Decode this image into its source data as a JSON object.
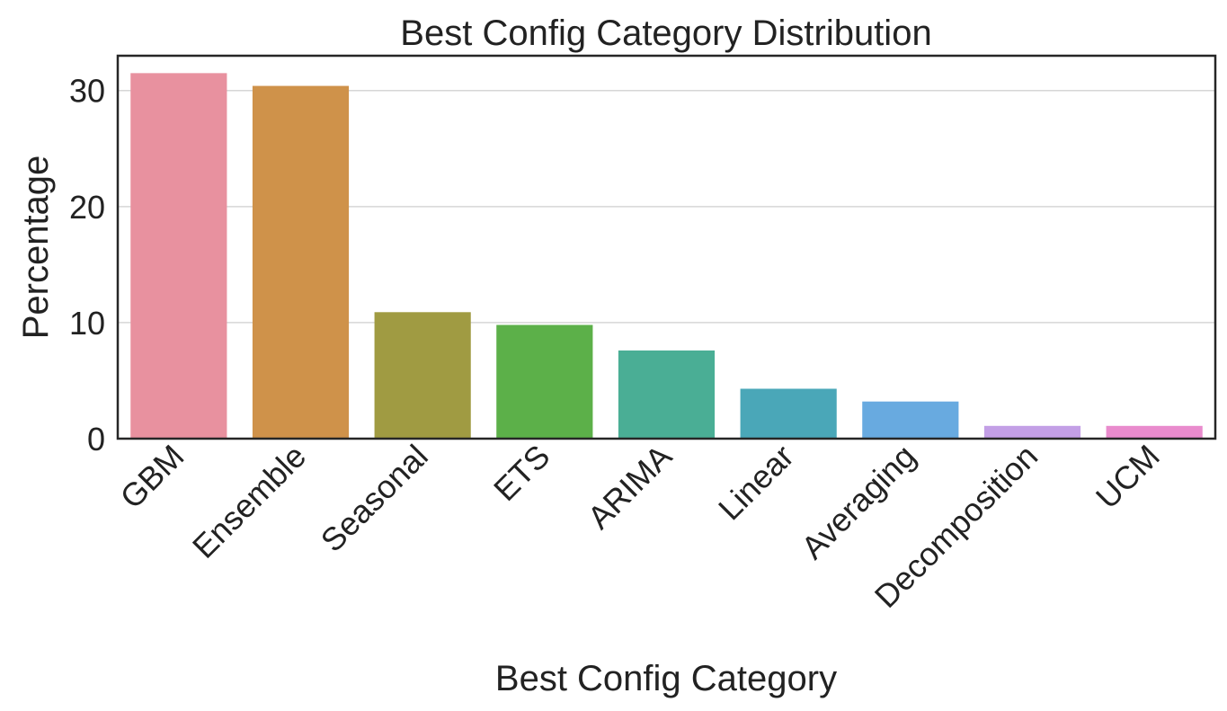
{
  "chart_data": {
    "type": "bar",
    "title": "Best Config Category Distribution",
    "xlabel": "Best Config Category",
    "ylabel": "Percentage",
    "categories": [
      "GBM",
      "Ensemble",
      "Seasonal",
      "ETS",
      "ARIMA",
      "Linear",
      "Averaging",
      "Decomposition",
      "UCM"
    ],
    "values": [
      31.5,
      30.4,
      10.9,
      9.8,
      7.6,
      4.3,
      3.2,
      1.1,
      1.1
    ],
    "colors": [
      "#e8919f",
      "#cf924a",
      "#a09b42",
      "#5cb049",
      "#4aae95",
      "#4aa7b8",
      "#68aae0",
      "#c39fe6",
      "#e98bcd"
    ],
    "ylim": [
      0,
      33
    ],
    "yticks": [
      0,
      10,
      20,
      30
    ],
    "grid": "y",
    "legend": "none"
  }
}
